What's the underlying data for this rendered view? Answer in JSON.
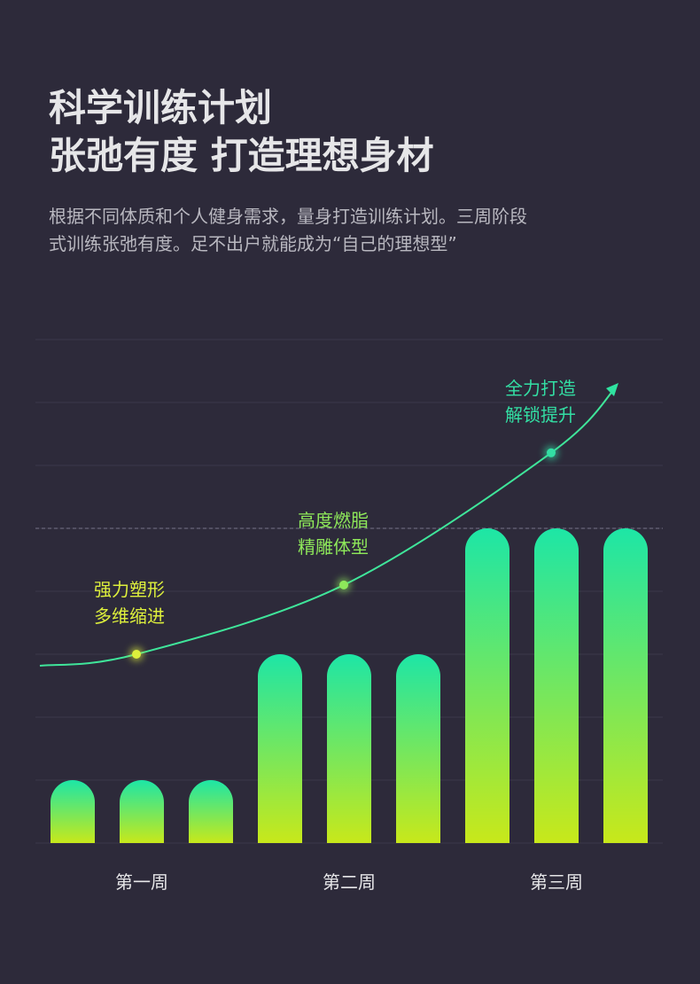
{
  "header": {
    "title_lines": [
      "科学训练计划",
      "张弛有度  打造理想身材"
    ],
    "description_lines": [
      "根据不同体质和个人健身需求，量身打造训练计划。三周阶段",
      "式训练张弛有度。足不出户就能成为“自己的理想型”"
    ]
  },
  "chart_data": {
    "type": "bar",
    "groups": [
      {
        "label": "第一周",
        "values": [
          1,
          1,
          1
        ]
      },
      {
        "label": "第二周",
        "values": [
          3,
          3,
          3
        ]
      },
      {
        "label": "第三周",
        "values": [
          5,
          5,
          5
        ]
      }
    ],
    "colors": [
      "#1de6a6",
      "#c8e81a"
    ],
    "ylim": [
      0,
      8
    ],
    "yticks": [
      0,
      1,
      2,
      3,
      4,
      5,
      6,
      7,
      8
    ],
    "grid": true,
    "reference_line": 5,
    "annotations": [
      {
        "lines": [
          "强力塑形",
          "多维缩进"
        ],
        "bar": 1,
        "value": 3,
        "color": "#def03c"
      },
      {
        "lines": [
          "高度燃脂",
          "精雕体型"
        ],
        "bar": 4,
        "value": 4.1,
        "color": "#8ee85a"
      },
      {
        "lines": [
          "全力打造",
          "解锁提升"
        ],
        "bar": 7,
        "value": 6.2,
        "color": "#33dfa4"
      }
    ]
  }
}
